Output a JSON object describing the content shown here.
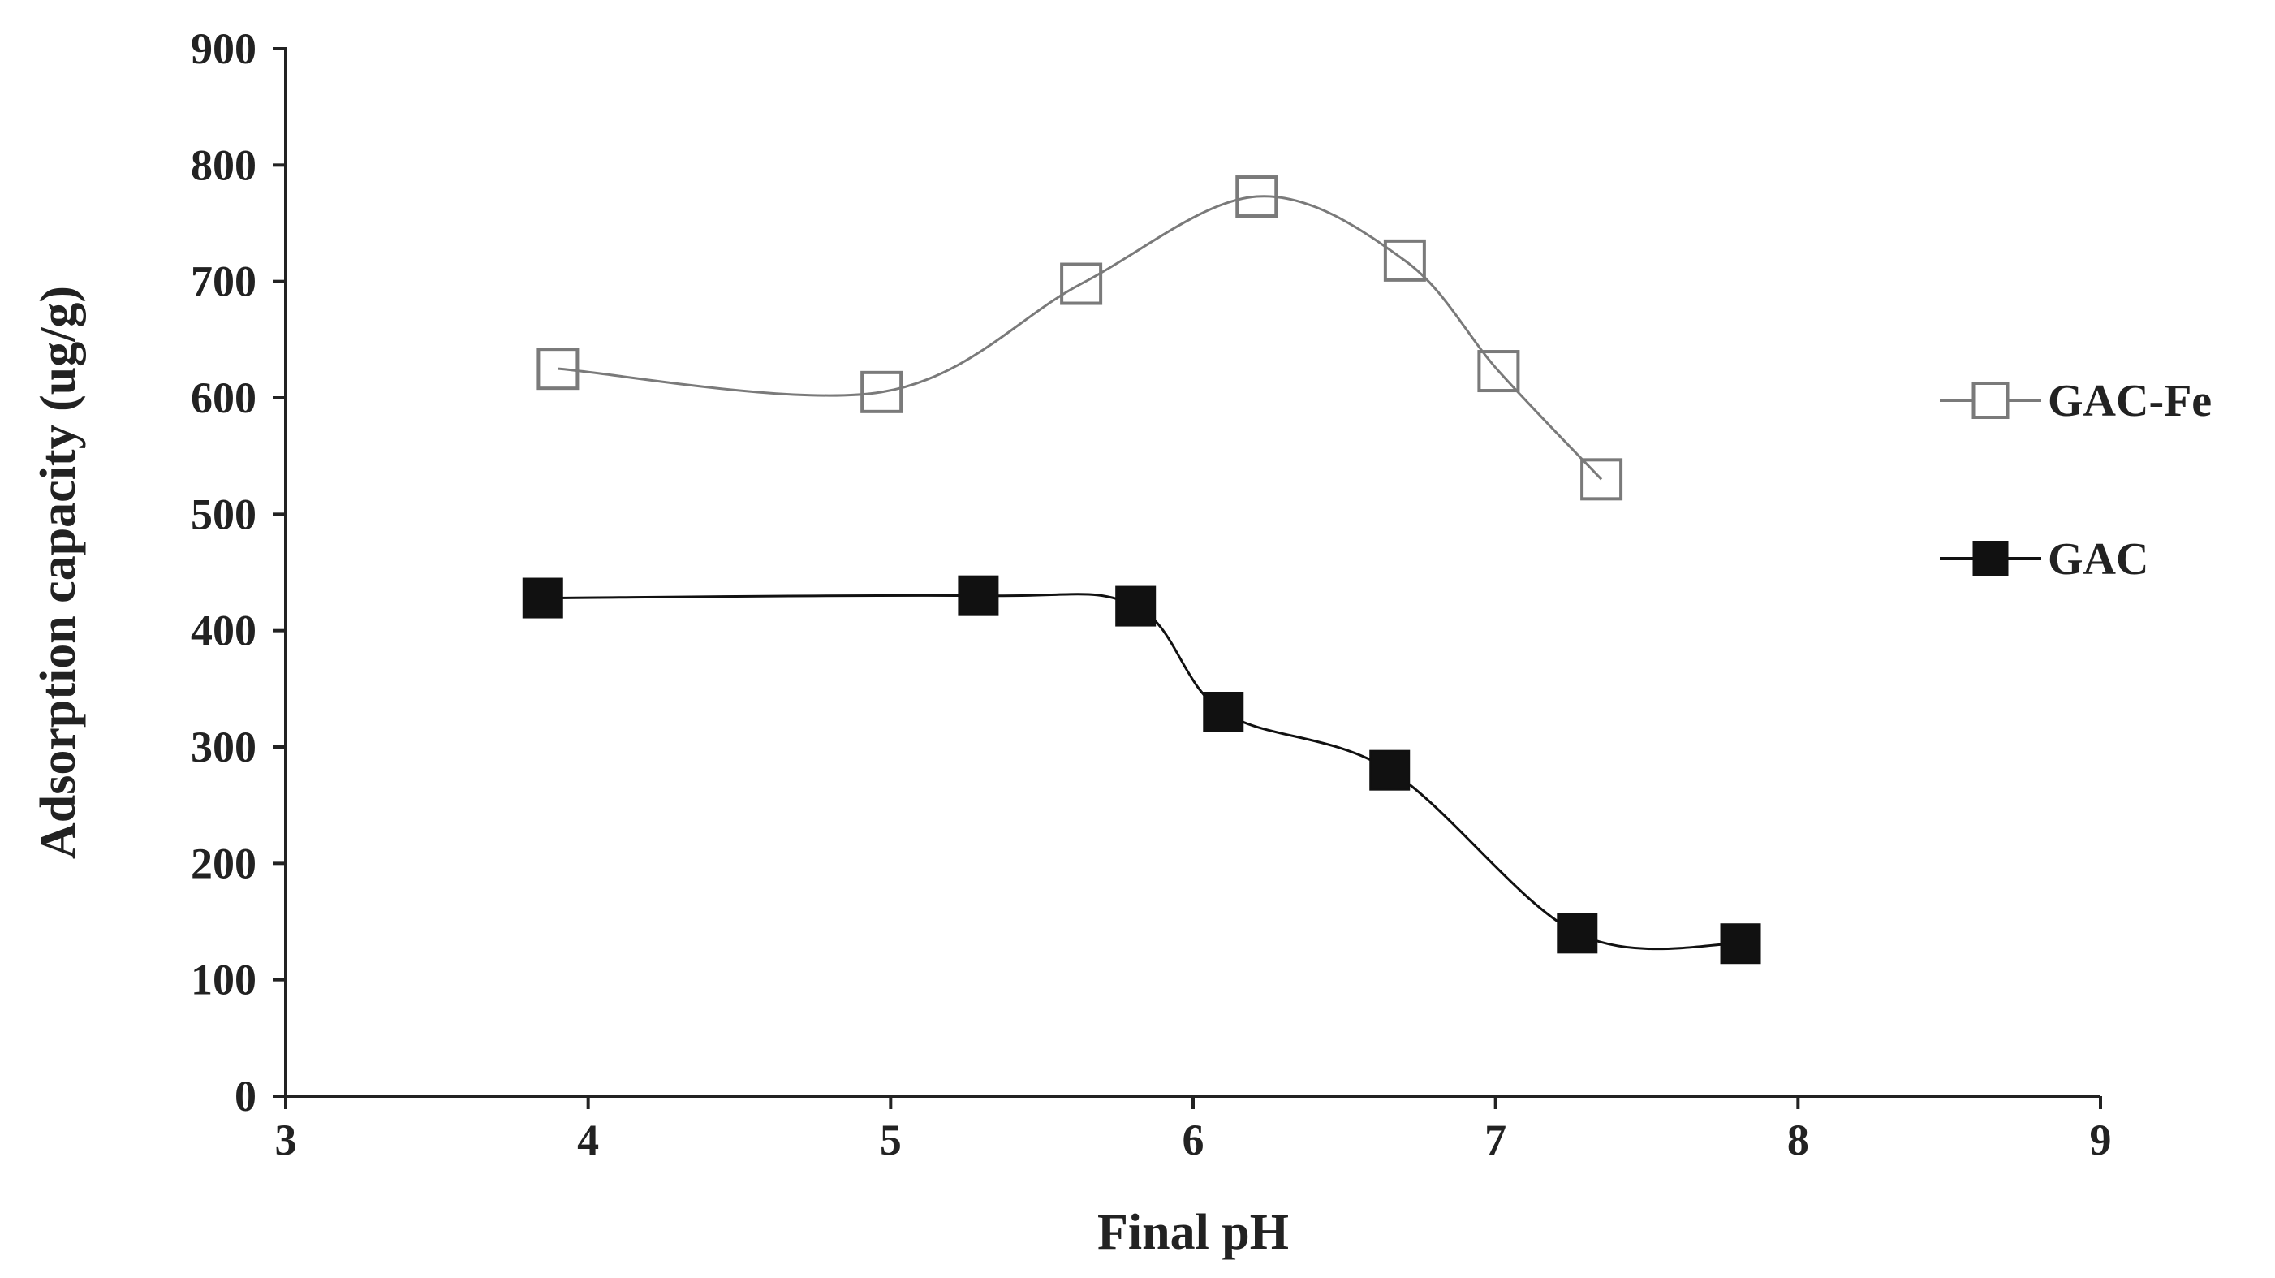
{
  "chart_data": {
    "type": "scatter",
    "xlabel": "Final pH",
    "ylabel": "Adsorption capacity (ug/g)",
    "xlim": [
      3,
      9
    ],
    "ylim": [
      0,
      900
    ],
    "xticks": [
      "3",
      "4",
      "5",
      "6",
      "7",
      "8",
      "9"
    ],
    "yticks": [
      "0",
      "100",
      "200",
      "300",
      "400",
      "500",
      "600",
      "700",
      "800",
      "900"
    ],
    "grid": false,
    "legend_position": "right",
    "series": [
      {
        "name": "GAC-Fe",
        "marker": "open-square",
        "line": "smooth",
        "color": "#7a7a7a",
        "points": [
          {
            "x": 3.9,
            "y": 625
          },
          {
            "x": 4.97,
            "y": 605
          },
          {
            "x": 5.63,
            "y": 698
          },
          {
            "x": 6.21,
            "y": 773
          },
          {
            "x": 6.7,
            "y": 718
          },
          {
            "x": 7.01,
            "y": 623
          },
          {
            "x": 7.35,
            "y": 530
          }
        ]
      },
      {
        "name": "GAC",
        "marker": "filled-square",
        "line": "smooth",
        "color": "#111111",
        "points": [
          {
            "x": 3.85,
            "y": 428
          },
          {
            "x": 5.29,
            "y": 430
          },
          {
            "x": 5.81,
            "y": 421
          },
          {
            "x": 6.1,
            "y": 330
          },
          {
            "x": 6.65,
            "y": 280
          },
          {
            "x": 7.27,
            "y": 140
          },
          {
            "x": 7.81,
            "y": 131
          }
        ]
      }
    ]
  }
}
